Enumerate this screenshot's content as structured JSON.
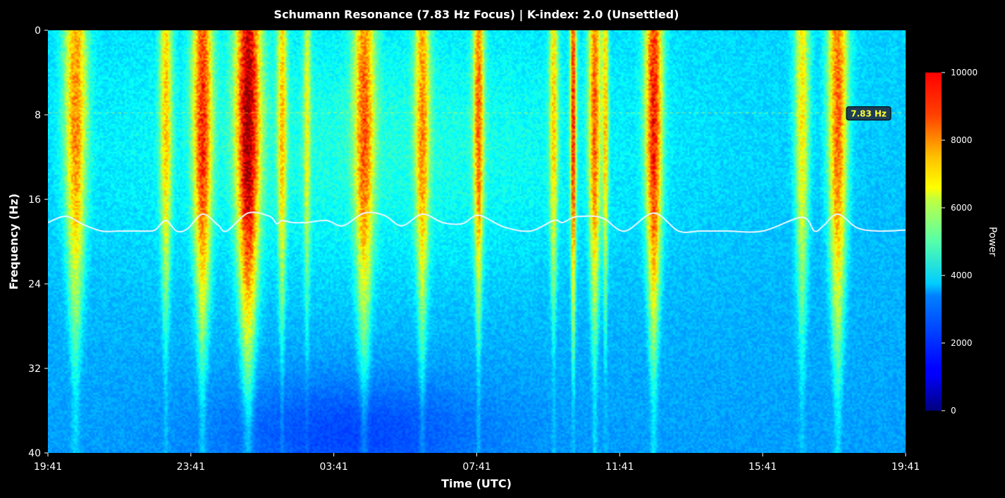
{
  "chart_data": {
    "type": "heatmap",
    "title": "Schumann Resonance (7.83 Hz Focus) | K-index: 2.0 (Unsettled)",
    "xlabel": "Time (UTC)",
    "ylabel": "Frequency (Hz)",
    "x_tick_labels": [
      "19:41",
      "23:41",
      "03:41",
      "07:41",
      "11:41",
      "15:41",
      "19:41"
    ],
    "x_range_hours": [
      0,
      24
    ],
    "y_ticks": [
      0,
      8,
      16,
      24,
      32,
      40
    ],
    "ylim": [
      40,
      0
    ],
    "colorbar": {
      "label": "Power",
      "range": [
        0,
        10000
      ],
      "ticks": [
        0,
        2000,
        4000,
        6000,
        8000,
        10000
      ],
      "colormap": "jet"
    },
    "background_power": 3300,
    "bursts": [
      {
        "t": 1.55,
        "width": 0.45,
        "peak": 7400,
        "depth": 35
      },
      {
        "t": 6.6,
        "width": 0.25,
        "peak": 6600,
        "depth": 33
      },
      {
        "t": 8.65,
        "width": 0.4,
        "peak": 8200,
        "depth": 36
      },
      {
        "t": 11.2,
        "width": 0.5,
        "peak": 9400,
        "depth": 38
      },
      {
        "t": 13.1,
        "width": 0.2,
        "peak": 6500,
        "depth": 34
      },
      {
        "t": 14.5,
        "width": 0.15,
        "peak": 5600,
        "depth": 34
      },
      {
        "t": 17.7,
        "width": 0.42,
        "peak": 7400,
        "depth": 37
      },
      {
        "t": 20.95,
        "width": 0.3,
        "peak": 7000,
        "depth": 36
      },
      {
        "t": 24.1,
        "width": 0.22,
        "peak": 7500,
        "depth": 33
      },
      {
        "t": 28.3,
        "width": 0.18,
        "peak": 6500,
        "depth": 32
      },
      {
        "t": 29.4,
        "width": 0.12,
        "peak": 8400,
        "depth": 36
      },
      {
        "t": 30.6,
        "width": 0.25,
        "peak": 7700,
        "depth": 35
      },
      {
        "t": 31.2,
        "width": 0.12,
        "peak": 6500,
        "depth": 34
      },
      {
        "t": 33.9,
        "width": 0.35,
        "peak": 8600,
        "depth": 36
      },
      {
        "t": 42.2,
        "width": 0.3,
        "peak": 6500,
        "depth": 35
      },
      {
        "t": 44.2,
        "width": 0.4,
        "peak": 8000,
        "depth": 37
      }
    ],
    "overlay_line": {
      "x": [
        0,
        1,
        2,
        3,
        4,
        4.5,
        5,
        5.5,
        6,
        6.6,
        7.2,
        7.8,
        8.65,
        9.5,
        10,
        11.2,
        12.4,
        12.8,
        13.1,
        13.7,
        14.3,
        14.5,
        15.6,
        16.5,
        17.7,
        18.8,
        19.8,
        20.95,
        22.1,
        23.2,
        24.1,
        25.5,
        27,
        28.3,
        28.8,
        29.4,
        30.0,
        30.6,
        31.2,
        32.3,
        33.9,
        35.3,
        36.5,
        38,
        40,
        42.2,
        42.9,
        43.4,
        44.2,
        45.3,
        46.5,
        48
      ],
      "y": [
        18.2,
        17.6,
        18.4,
        19.0,
        19.0,
        19.0,
        19.0,
        19.0,
        18.9,
        18.0,
        19.0,
        18.8,
        17.4,
        18.4,
        19.0,
        17.3,
        17.6,
        18.3,
        18.0,
        18.2,
        18.2,
        18.2,
        18.0,
        18.5,
        17.3,
        17.5,
        18.5,
        17.4,
        18.2,
        18.3,
        17.5,
        18.6,
        19.0,
        18.0,
        18.2,
        17.7,
        17.6,
        17.6,
        17.9,
        19.0,
        17.3,
        19.0,
        19.0,
        19.0,
        19.0,
        17.7,
        19.0,
        18.5,
        17.4,
        18.7,
        19.0,
        18.9
      ]
    },
    "reference_line": {
      "y": 7.83,
      "label": "7.83 Hz",
      "color": "#ffff33"
    }
  }
}
